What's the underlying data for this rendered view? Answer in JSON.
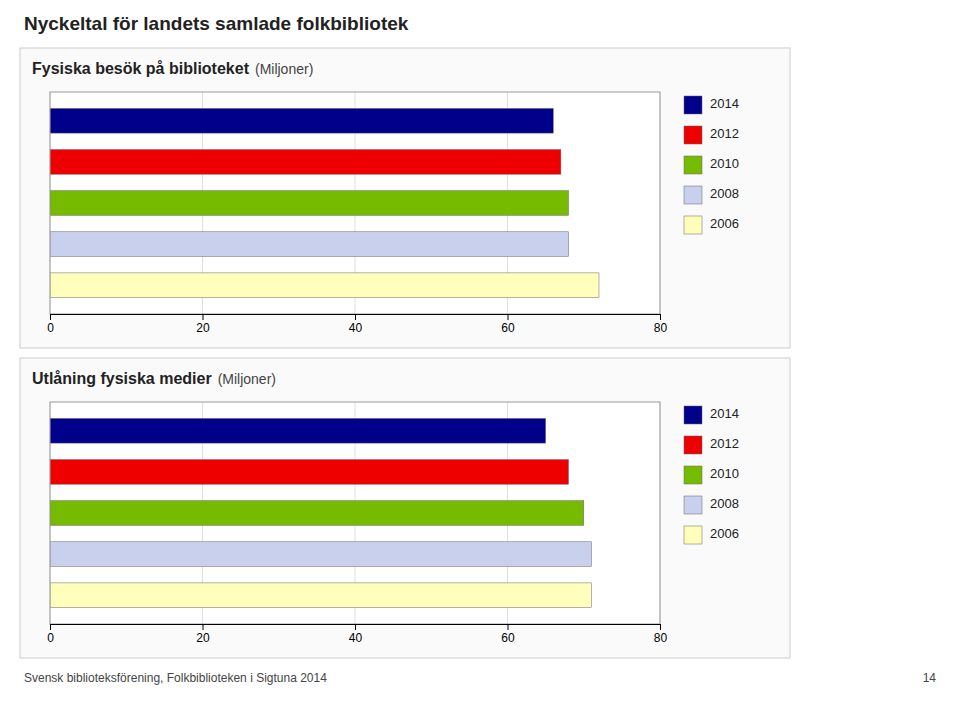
{
  "title": "Nyckeltal för landets samlade folkbibliotek",
  "annotations": [
    "Svensk biblioteksförening, Folkbiblioteken i Sigtuna 2014",
    "14"
  ],
  "chart_data": [
    {
      "type": "bar",
      "orientation": "horizontal",
      "title": "Fysiska besök på biblioteket",
      "subtitle": "(Miljoner)",
      "categories": [
        "2014",
        "2012",
        "2010",
        "2008",
        "2006"
      ],
      "values": [
        66,
        67,
        68,
        68,
        72
      ],
      "colors": [
        "#00008B",
        "#EE0000",
        "#77BB00",
        "#C8D0EE",
        "#FFFFBB"
      ],
      "xlim": [
        0,
        80
      ],
      "xticks": [
        0,
        20,
        40,
        60,
        80
      ],
      "grid": true,
      "legend": "right",
      "tick_labels": "x"
    },
    {
      "type": "bar",
      "orientation": "horizontal",
      "title": "Utlåning fysiska medier",
      "subtitle": "(Miljoner)",
      "categories": [
        "2014",
        "2012",
        "2010",
        "2008",
        "2006"
      ],
      "values": [
        65,
        68,
        70,
        71,
        71
      ],
      "colors": [
        "#00008B",
        "#EE0000",
        "#77BB00",
        "#C8D0EE",
        "#FFFFBB"
      ],
      "xlim": [
        0,
        80
      ],
      "xticks": [
        0,
        20,
        40,
        60,
        80
      ],
      "grid": true,
      "legend": "right",
      "tick_labels": "x"
    }
  ]
}
